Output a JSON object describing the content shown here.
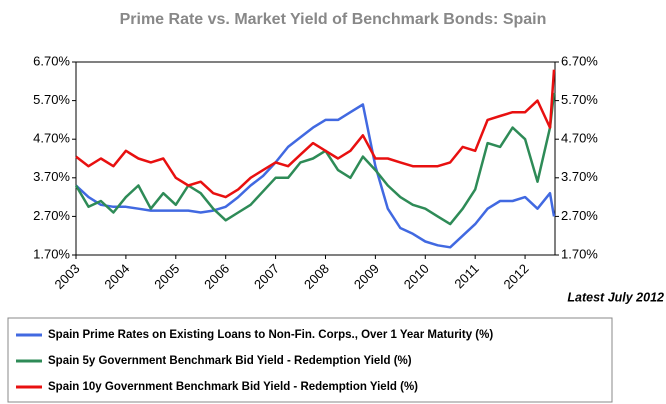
{
  "chart_data": {
    "type": "line",
    "title": "Prime Rate vs. Market Yield of Benchmark Bonds: Spain",
    "annotation": "Latest July 2012",
    "x": [
      2003,
      2003.25,
      2003.5,
      2003.75,
      2004,
      2004.25,
      2004.5,
      2004.75,
      2005,
      2005.25,
      2005.5,
      2005.75,
      2006,
      2006.25,
      2006.5,
      2006.75,
      2007,
      2007.25,
      2007.5,
      2007.75,
      2008,
      2008.25,
      2008.5,
      2008.75,
      2009,
      2009.25,
      2009.5,
      2009.75,
      2010,
      2010.25,
      2010.5,
      2010.75,
      2011,
      2011.25,
      2011.5,
      2011.75,
      2012,
      2012.25,
      2012.5,
      2012.58
    ],
    "xlim": [
      2003,
      2012.6
    ],
    "xticks": [
      2003,
      2004,
      2005,
      2006,
      2007,
      2008,
      2009,
      2010,
      2011,
      2012
    ],
    "ylim": [
      1.7,
      6.7
    ],
    "yticks": [
      {
        "value": 1.7,
        "label": "1.70%"
      },
      {
        "value": 2.7,
        "label": "2.70%"
      },
      {
        "value": 3.7,
        "label": "3.70%"
      },
      {
        "value": 4.7,
        "label": "4.70%"
      },
      {
        "value": 5.7,
        "label": "5.70%"
      },
      {
        "value": 6.7,
        "label": "6.70%"
      }
    ],
    "y2lim": [
      1.7,
      6.7
    ],
    "y2ticks": [
      {
        "value": 1.7,
        "label": "1.70%"
      },
      {
        "value": 2.7,
        "label": "2.70%"
      },
      {
        "value": 3.7,
        "label": "3.70%"
      },
      {
        "value": 4.7,
        "label": "4.70%"
      },
      {
        "value": 5.7,
        "label": "5.70%"
      },
      {
        "value": 6.7,
        "label": "6.70%"
      }
    ],
    "series": [
      {
        "name": "Spain Prime Rates on Existing Loans to Non-Fin. Corps., Over 1 Year Maturity (%)",
        "color": "#4169e1",
        "values": [
          3.5,
          3.2,
          3.0,
          2.95,
          2.95,
          2.9,
          2.85,
          2.85,
          2.85,
          2.85,
          2.8,
          2.85,
          2.95,
          3.2,
          3.5,
          3.75,
          4.1,
          4.5,
          4.75,
          5.0,
          5.2,
          5.2,
          5.4,
          5.6,
          4.0,
          2.9,
          2.4,
          2.25,
          2.05,
          1.95,
          1.9,
          2.2,
          2.5,
          2.9,
          3.1,
          3.1,
          3.2,
          2.9,
          3.3,
          2.7
        ]
      },
      {
        "name": "Spain 5y Government Benchmark Bid Yield - Redemption Yield (%)",
        "color": "#2e8b57",
        "values": [
          3.5,
          2.95,
          3.1,
          2.8,
          3.2,
          3.5,
          2.9,
          3.3,
          3.0,
          3.5,
          3.3,
          2.9,
          2.6,
          2.8,
          3.0,
          3.35,
          3.7,
          3.7,
          4.1,
          4.2,
          4.4,
          3.9,
          3.7,
          4.25,
          3.9,
          3.5,
          3.2,
          3.0,
          2.9,
          2.7,
          2.5,
          2.9,
          3.4,
          4.6,
          4.5,
          5.0,
          4.7,
          3.6,
          5.0,
          5.9
        ]
      },
      {
        "name": "Spain 10y Government Benchmark Bid Yield - Redemption Yield (%)",
        "color": "#e81010",
        "values": [
          4.25,
          4.0,
          4.2,
          4.0,
          4.4,
          4.2,
          4.1,
          4.2,
          3.7,
          3.5,
          3.6,
          3.3,
          3.2,
          3.4,
          3.7,
          3.9,
          4.1,
          4.0,
          4.3,
          4.6,
          4.4,
          4.2,
          4.4,
          4.8,
          4.2,
          4.2,
          4.1,
          4.0,
          4.0,
          4.0,
          4.1,
          4.5,
          4.4,
          5.2,
          5.3,
          5.4,
          5.4,
          5.7,
          5.0,
          6.5
        ]
      }
    ]
  }
}
